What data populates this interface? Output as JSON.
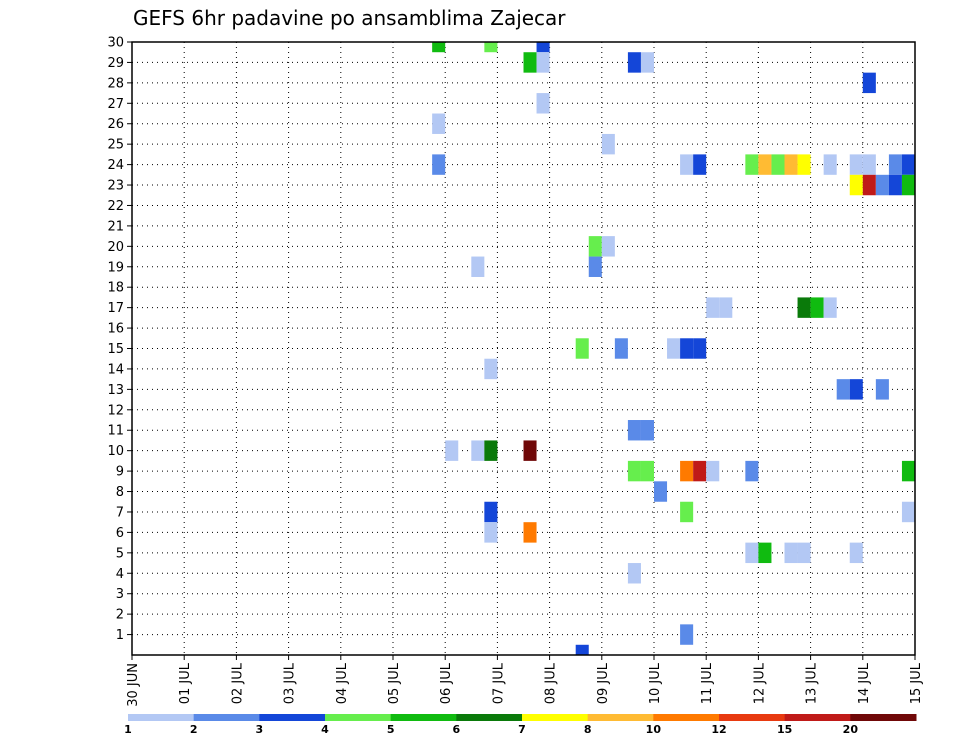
{
  "chart_data": {
    "type": "heatmap",
    "title": "GEFS 6hr padavine po ansamblima Zajecar",
    "x_tick_labels": [
      "30 JUN",
      "01 JUL",
      "02 JUL",
      "03 JUL",
      "04 JUL",
      "05 JUL",
      "06 JUL",
      "07 JUL",
      "08 JUL",
      "09 JUL",
      "10 JUL",
      "11 JUL",
      "12 JUL",
      "13 JUL",
      "14 JUL",
      "15 JUL"
    ],
    "y_tick_labels": [
      "1",
      "2",
      "3",
      "4",
      "5",
      "6",
      "7",
      "8",
      "9",
      "10",
      "11",
      "12",
      "13",
      "14",
      "15",
      "16",
      "17",
      "18",
      "19",
      "20",
      "21",
      "22",
      "23",
      "24",
      "25",
      "26",
      "27",
      "28",
      "29",
      "30"
    ],
    "x_range_days": [
      0,
      15
    ],
    "y_range": [
      0,
      30
    ],
    "x_axis": "days since 30 JUN 00Z (6-hourly steps)",
    "y_axis": "ensemble member",
    "grid": true,
    "colorbar": {
      "labels": [
        "1",
        "2",
        "3",
        "4",
        "5",
        "6",
        "7",
        "8",
        "10",
        "12",
        "15",
        "20"
      ],
      "colors": [
        "#b3c8f4",
        "#5a8ae8",
        "#1446d8",
        "#66ee4d",
        "#10bb10",
        "#0a7a0a",
        "#ffff00",
        "#ffbb33",
        "#ff7a00",
        "#e83a10",
        "#c01a18",
        "#700808"
      ]
    },
    "cells": [
      {
        "x": 5.75,
        "y": 30,
        "v": 5
      },
      {
        "x": 6.75,
        "y": 30,
        "v": 4
      },
      {
        "x": 7.75,
        "y": 30,
        "v": 3
      },
      {
        "x": 7.5,
        "y": 29,
        "v": 5
      },
      {
        "x": 7.75,
        "y": 29,
        "v": 1
      },
      {
        "x": 9.5,
        "y": 29,
        "v": 3
      },
      {
        "x": 9.75,
        "y": 29,
        "v": 1
      },
      {
        "x": 14,
        "y": 28,
        "v": 3
      },
      {
        "x": 7.75,
        "y": 27,
        "v": 1
      },
      {
        "x": 5.75,
        "y": 26,
        "v": 1
      },
      {
        "x": 9,
        "y": 25,
        "v": 1
      },
      {
        "x": 5.75,
        "y": 24,
        "v": 2
      },
      {
        "x": 10.5,
        "y": 24,
        "v": 1
      },
      {
        "x": 10.75,
        "y": 24,
        "v": 3
      },
      {
        "x": 11.75,
        "y": 24,
        "v": 4
      },
      {
        "x": 12,
        "y": 24,
        "v": 8
      },
      {
        "x": 12.25,
        "y": 24,
        "v": 4
      },
      {
        "x": 12.5,
        "y": 24,
        "v": 8
      },
      {
        "x": 12.75,
        "y": 24,
        "v": 7
      },
      {
        "x": 13.25,
        "y": 24,
        "v": 1
      },
      {
        "x": 13.75,
        "y": 24,
        "v": 1
      },
      {
        "x": 14,
        "y": 24,
        "v": 1
      },
      {
        "x": 14.5,
        "y": 24,
        "v": 2
      },
      {
        "x": 14.75,
        "y": 24,
        "v": 3
      },
      {
        "x": 13.75,
        "y": 23,
        "v": 7
      },
      {
        "x": 14,
        "y": 23,
        "v": 15
      },
      {
        "x": 14.25,
        "y": 23,
        "v": 2
      },
      {
        "x": 14.5,
        "y": 23,
        "v": 3
      },
      {
        "x": 14.75,
        "y": 23,
        "v": 5
      },
      {
        "x": 8.75,
        "y": 20,
        "v": 4
      },
      {
        "x": 9,
        "y": 20,
        "v": 1
      },
      {
        "x": 6.5,
        "y": 19,
        "v": 1
      },
      {
        "x": 8.75,
        "y": 19,
        "v": 2
      },
      {
        "x": 11,
        "y": 17,
        "v": 1
      },
      {
        "x": 11.25,
        "y": 17,
        "v": 1
      },
      {
        "x": 12.75,
        "y": 17,
        "v": 6
      },
      {
        "x": 13,
        "y": 17,
        "v": 5
      },
      {
        "x": 13.25,
        "y": 17,
        "v": 1
      },
      {
        "x": 8.5,
        "y": 15,
        "v": 4
      },
      {
        "x": 9.25,
        "y": 15,
        "v": 2
      },
      {
        "x": 10.25,
        "y": 15,
        "v": 1
      },
      {
        "x": 10.5,
        "y": 15,
        "v": 3
      },
      {
        "x": 10.75,
        "y": 15,
        "v": 3
      },
      {
        "x": 6.75,
        "y": 14,
        "v": 1
      },
      {
        "x": 13.5,
        "y": 13,
        "v": 2
      },
      {
        "x": 13.75,
        "y": 13,
        "v": 3
      },
      {
        "x": 14.25,
        "y": 13,
        "v": 2
      },
      {
        "x": 9.5,
        "y": 11,
        "v": 2
      },
      {
        "x": 9.75,
        "y": 11,
        "v": 2
      },
      {
        "x": 6,
        "y": 10,
        "v": 1
      },
      {
        "x": 6.5,
        "y": 10,
        "v": 1
      },
      {
        "x": 6.75,
        "y": 10,
        "v": 6
      },
      {
        "x": 7.5,
        "y": 10,
        "v": 20
      },
      {
        "x": 9.5,
        "y": 9,
        "v": 4
      },
      {
        "x": 9.75,
        "y": 9,
        "v": 4
      },
      {
        "x": 10.5,
        "y": 9,
        "v": 10
      },
      {
        "x": 10.75,
        "y": 9,
        "v": 15
      },
      {
        "x": 11,
        "y": 9,
        "v": 1
      },
      {
        "x": 11.75,
        "y": 9,
        "v": 2
      },
      {
        "x": 14.75,
        "y": 9,
        "v": 5
      },
      {
        "x": 10,
        "y": 8,
        "v": 2
      },
      {
        "x": 6.75,
        "y": 7,
        "v": 3
      },
      {
        "x": 10.5,
        "y": 7,
        "v": 4
      },
      {
        "x": 14.75,
        "y": 7,
        "v": 1
      },
      {
        "x": 6.75,
        "y": 6,
        "v": 1
      },
      {
        "x": 7.5,
        "y": 6,
        "v": 10
      },
      {
        "x": 11.75,
        "y": 5,
        "v": 1
      },
      {
        "x": 12,
        "y": 5,
        "v": 5
      },
      {
        "x": 12.5,
        "y": 5,
        "v": 1
      },
      {
        "x": 12.75,
        "y": 5,
        "v": 1
      },
      {
        "x": 13.75,
        "y": 5,
        "v": 1
      },
      {
        "x": 9.5,
        "y": 4,
        "v": 1
      },
      {
        "x": 10.5,
        "y": 1,
        "v": 2
      },
      {
        "x": 8.5,
        "y": 0,
        "v": 3
      }
    ]
  }
}
